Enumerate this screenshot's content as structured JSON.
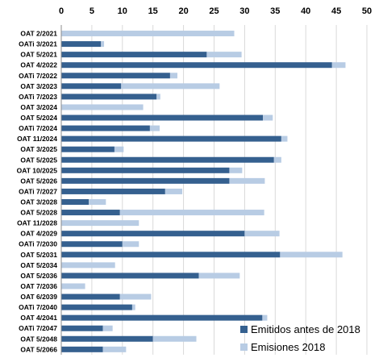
{
  "chart_data": {
    "type": "bar",
    "orientation": "horizontal",
    "stacked": true,
    "xlim": [
      0,
      50
    ],
    "xticks": [
      0,
      5,
      10,
      15,
      20,
      25,
      30,
      35,
      40,
      45,
      50
    ],
    "grid": true,
    "legend_position": "bottom-right",
    "categories": [
      "OAT 2/2021",
      "OATi 3/2021",
      "OAT 5/2021",
      "OAT 4/2022",
      "OATi 7/2022",
      "OAT 3/2023",
      "OATi 7/2023",
      "OAT 3/2024",
      "OAT 5/2024",
      "OATi 7/2024",
      "OAT 11/2024",
      "OAT 3/2025",
      "OAT 5/2025",
      "OAT 10/2025",
      "OAT 5/2026",
      "OATi 7/2027",
      "OAT 3/2028",
      "OAT 5/2028",
      "OAT 11/2028",
      "OAT 4/2029",
      "OATi 7/2030",
      "OAT 5/2031",
      "OAT 5/2034",
      "OAT 5/2036",
      "OAT 7/2036",
      "OAT 6/2039",
      "OATi 7/2040",
      "OAT 4/2041",
      "OATi 7/2047",
      "OAT 5/2048",
      "OAT 5/2066"
    ],
    "series": [
      {
        "name": "Emitidos antes de 2018",
        "color": "#35608f",
        "values": [
          0,
          6.5,
          23.8,
          44.3,
          17.8,
          9.8,
          15.6,
          0,
          33,
          14.5,
          36,
          8.7,
          34.8,
          27.5,
          27.5,
          17,
          4.5,
          9.6,
          0,
          30,
          10,
          35.8,
          0,
          22.5,
          0,
          9.6,
          11.6,
          32.9,
          6.8,
          15,
          6.8
        ]
      },
      {
        "name": "Emisiones 2018",
        "color": "#b8cce4",
        "values": [
          28.3,
          0.5,
          5.7,
          2.2,
          1.2,
          16.1,
          0.6,
          13.4,
          1.6,
          1.6,
          1,
          1.5,
          1.2,
          2.1,
          5.8,
          2.8,
          2.8,
          23.6,
          12.7,
          5.7,
          2.7,
          10.2,
          8.8,
          6.7,
          3.9,
          5.1,
          0.5,
          0.8,
          1.6,
          7.1,
          3.8
        ]
      }
    ]
  }
}
